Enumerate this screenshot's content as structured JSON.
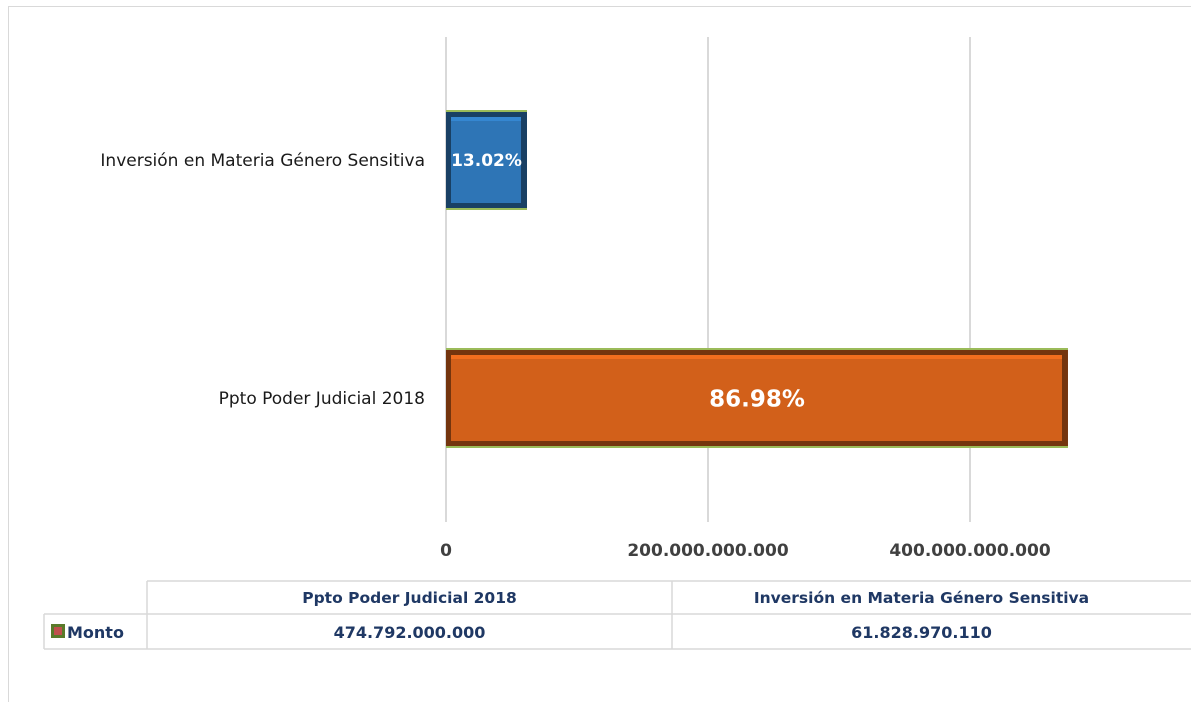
{
  "chart_data": {
    "type": "bar",
    "orientation": "horizontal",
    "categories": [
      "Ppto Poder Judicial 2018",
      "Inversión en Materia Género Sensitiva"
    ],
    "series": [
      {
        "name": "Monto",
        "values": [
          474792000000,
          61828970110
        ],
        "value_labels": [
          "474.792.000.000",
          "61.828.970.110"
        ],
        "data_labels": [
          "86.98%",
          "13.02%"
        ],
        "colors": [
          "#d2601a",
          "#2e75b6"
        ]
      }
    ],
    "x_ticks": [
      0,
      200000000000,
      400000000000
    ],
    "x_tick_labels": [
      "0",
      "200.000.000.000",
      "400.000.000.000"
    ],
    "xlim": [
      0,
      580000000000
    ],
    "grid": true,
    "legend": "data-table-below",
    "data_table": {
      "headers": [
        "Ppto Poder Judicial 2018",
        "Inversión en Materia Género Sensitiva"
      ],
      "row_label": "Monto",
      "row_values": [
        "474.792.000.000",
        "61.828.970.110"
      ]
    }
  }
}
